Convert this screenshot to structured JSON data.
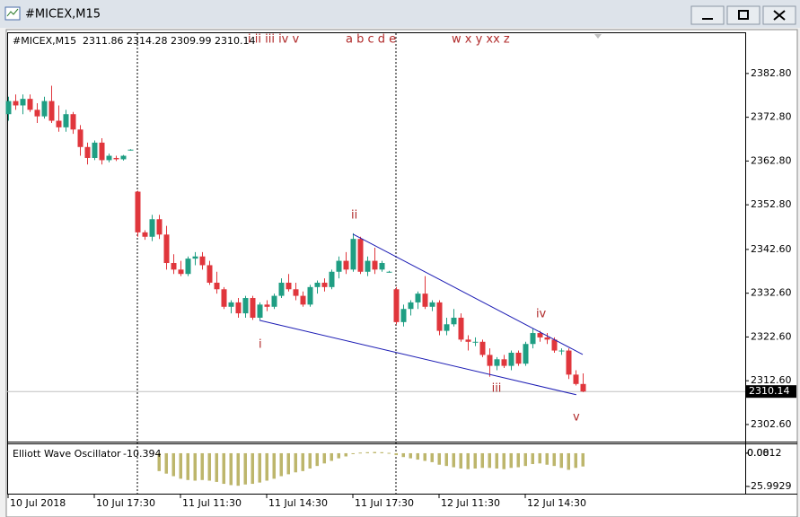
{
  "window_title": "#MICEX,M15",
  "chart_data": {
    "type": "candlestick",
    "symbol": "#MICEX,M15",
    "up_color": "#1f9e83",
    "down_color": "#e0363c",
    "ylim": [
      2298.9,
      2392.0
    ],
    "yticks": [
      {
        "value": 2382.8,
        "label": "2382.80"
      },
      {
        "value": 2372.8,
        "label": "2372.80"
      },
      {
        "value": 2362.8,
        "label": "2362.80"
      },
      {
        "value": 2352.8,
        "label": "2352.80"
      },
      {
        "value": 2342.6,
        "label": "2342.60"
      },
      {
        "value": 2332.6,
        "label": "2332.60"
      },
      {
        "value": 2322.6,
        "label": "2322.60"
      },
      {
        "value": 2312.6,
        "label": "2312.60"
      },
      {
        "value": 2302.6,
        "label": "2302.60"
      }
    ],
    "categories": [
      "10 Jul 2018",
      null,
      null,
      null,
      null,
      null,
      null,
      null,
      null,
      null,
      null,
      null,
      "10 Jul 17:30",
      null,
      null,
      null,
      null,
      null,
      null,
      null,
      null,
      null,
      null,
      null,
      "11 Jul 11:30",
      null,
      null,
      null,
      null,
      null,
      null,
      null,
      null,
      null,
      null,
      null,
      "11 Jul 14:30",
      null,
      null,
      null,
      null,
      null,
      null,
      null,
      null,
      null,
      null,
      null,
      "11 Jul 17:30",
      null,
      null,
      null,
      null,
      null,
      null,
      null,
      null,
      null,
      null,
      null,
      "12 Jul 11:30",
      null,
      null,
      null,
      null,
      null,
      null,
      null,
      null,
      null,
      null,
      null,
      "12 Jul 14:30",
      null,
      null,
      null,
      null,
      null,
      null,
      null,
      null
    ],
    "separators": [
      18,
      54
    ],
    "ohlc": [
      [
        2373.5,
        2377.5,
        2372,
        2376.5
      ],
      [
        2376.5,
        2378,
        2374.5,
        2375.5
      ],
      [
        2375.5,
        2378,
        2373.5,
        2377
      ],
      [
        2377,
        2378,
        2374,
        2374.5
      ],
      [
        2374.5,
        2376,
        2371.5,
        2373
      ],
      [
        2373,
        2377.5,
        2372.5,
        2376.5
      ],
      [
        2376.5,
        2380,
        2371.5,
        2372
      ],
      [
        2372,
        2375.5,
        2369.5,
        2370.5
      ],
      [
        2370.5,
        2374.5,
        2369.5,
        2373.5
      ],
      [
        2373.5,
        2374,
        2369,
        2370
      ],
      [
        2370,
        2371,
        2364,
        2366
      ],
      [
        2366,
        2367,
        2362,
        2363.5
      ],
      [
        2363.5,
        2367.5,
        2363,
        2367
      ],
      [
        2367,
        2368,
        2362,
        2363
      ],
      [
        2363,
        2364.5,
        2362.5,
        2364
      ],
      [
        2363.5,
        2364,
        2362.8,
        2363.2
      ],
      [
        2363.2,
        2364.2,
        2362.9,
        2364
      ],
      [
        2365.3,
        2365.5,
        2365.2,
        2365.4
      ],
      [
        2355.8,
        2356,
        2345.5,
        2346.5
      ],
      [
        2346.5,
        2347,
        2344.8,
        2345.5
      ],
      [
        2345.5,
        2350.5,
        2344.5,
        2349.5
      ],
      [
        2349.5,
        2350.5,
        2345,
        2346
      ],
      [
        2346,
        2348,
        2338,
        2339.5
      ],
      [
        2339.5,
        2341.5,
        2337,
        2338
      ],
      [
        2338,
        2340,
        2336.5,
        2337
      ],
      [
        2337,
        2341,
        2336.5,
        2340.5
      ],
      [
        2340.5,
        2342,
        2339,
        2341
      ],
      [
        2341,
        2342,
        2338,
        2339
      ],
      [
        2339,
        2340,
        2334.5,
        2335
      ],
      [
        2335,
        2337.5,
        2332.5,
        2333.5
      ],
      [
        2333.5,
        2334,
        2329,
        2329.5
      ],
      [
        2329.5,
        2331,
        2328,
        2330.5
      ],
      [
        2330.5,
        2331.5,
        2327,
        2328
      ],
      [
        2328,
        2332,
        2327,
        2331.5
      ],
      [
        2331.5,
        2332,
        2326.5,
        2327
      ],
      [
        2327,
        2330.5,
        2326.5,
        2330
      ],
      [
        2330,
        2331,
        2328.5,
        2329.5
      ],
      [
        2329.5,
        2332.5,
        2329,
        2332
      ],
      [
        2332,
        2336,
        2331.5,
        2335
      ],
      [
        2335,
        2337,
        2333,
        2333.5
      ],
      [
        2333.5,
        2335,
        2331,
        2332
      ],
      [
        2332,
        2333,
        2329.5,
        2330
      ],
      [
        2330,
        2334.5,
        2329.5,
        2334
      ],
      [
        2334,
        2335.5,
        2332.5,
        2335
      ],
      [
        2335,
        2336,
        2333,
        2334
      ],
      [
        2334,
        2338,
        2333.5,
        2337.5
      ],
      [
        2337.5,
        2341,
        2336,
        2340
      ],
      [
        2340,
        2342,
        2337,
        2338
      ],
      [
        2338,
        2346.3,
        2337.5,
        2345
      ],
      [
        2345,
        2345.5,
        2337,
        2337.5
      ],
      [
        2337.5,
        2341,
        2336.5,
        2340
      ],
      [
        2340,
        2343,
        2337,
        2338
      ],
      [
        2338,
        2340,
        2337.5,
        2339.5
      ],
      [
        2337.5,
        2337.7,
        2337.3,
        2337.5
      ],
      [
        2333.5,
        2334,
        2325.5,
        2326
      ],
      [
        2326,
        2330,
        2325,
        2329
      ],
      [
        2329,
        2331,
        2327.5,
        2330.5
      ],
      [
        2330.5,
        2333,
        2329,
        2332.5
      ],
      [
        2332.5,
        2336.5,
        2329,
        2329.5
      ],
      [
        2329.5,
        2331,
        2328.5,
        2330.5
      ],
      [
        2330.5,
        2331,
        2323,
        2324
      ],
      [
        2324,
        2327,
        2323,
        2325.5
      ],
      [
        2325.5,
        2329,
        2325,
        2327
      ],
      [
        2327,
        2328,
        2321.5,
        2322
      ],
      [
        2322,
        2323,
        2319.5,
        2321.5
      ],
      [
        2321.5,
        2322.5,
        2320.5,
        2321.5
      ],
      [
        2321.5,
        2322,
        2318,
        2318.5
      ],
      [
        2318.5,
        2320,
        2313.5,
        2316
      ],
      [
        2316,
        2318,
        2315,
        2317.5
      ],
      [
        2317.5,
        2318.5,
        2315.5,
        2316
      ],
      [
        2316,
        2319.5,
        2315,
        2319
      ],
      [
        2319,
        2319.5,
        2316,
        2316.5
      ],
      [
        2316.5,
        2321.5,
        2316,
        2321
      ],
      [
        2321,
        2324.5,
        2320,
        2323.5
      ],
      [
        2323.5,
        2324,
        2321.5,
        2322.5
      ],
      [
        2322.5,
        2323.5,
        2321,
        2322
      ],
      [
        2322,
        2322.5,
        2319,
        2319.5
      ],
      [
        2319.5,
        2320,
        2318.5,
        2319.5
      ],
      [
        2319.5,
        2320,
        2313,
        2314
      ],
      [
        2314,
        2315,
        2311.5,
        2311.86
      ],
      [
        2311.86,
        2314.28,
        2309.99,
        2310.14
      ]
    ],
    "trend_color": "#1c1cb4",
    "trendlines": [
      {
        "x": [
          48,
          80
        ],
        "y": [
          2346.1,
          2318.6
        ]
      },
      {
        "x": [
          35,
          79.1
        ],
        "y": [
          2326.4,
          2309.4
        ]
      }
    ],
    "wave_labels": [
      "i ii iii iv v",
      "a b c d e",
      "w x y xx z"
    ],
    "annotations": [
      {
        "text": "i",
        "x": 35.1,
        "y": 2320.8
      },
      {
        "text": "ii",
        "x": 48.2,
        "y": 2350.4
      },
      {
        "text": "iii",
        "x": 68,
        "y": 2310.8
      },
      {
        "text": "iv",
        "x": 74.2,
        "y": 2327.8
      },
      {
        "text": "v",
        "x": 79.1,
        "y": 2304.2
      }
    ],
    "oscillator": {
      "name": "Elliott Wave Oscillator",
      "color": "#bdb66c",
      "ylim": [
        -31.7,
        7
      ],
      "yticks": [
        0.0812,
        {
          "value": 0,
          "label": "0.00"
        },
        -25.9929
      ],
      "values": [
        null,
        null,
        null,
        null,
        null,
        null,
        null,
        null,
        null,
        null,
        null,
        null,
        null,
        null,
        null,
        null,
        null,
        null,
        null,
        null,
        null,
        -14,
        -16,
        -18,
        -20,
        -21,
        -21.5,
        -21,
        -21.5,
        -22.5,
        -24,
        -25,
        -25.5,
        -24.5,
        -24,
        -23,
        -21.5,
        -20,
        -18,
        -16.5,
        -15,
        -14,
        -12,
        -10,
        -8,
        -6,
        -4,
        -2.5,
        -0.5,
        0.5,
        0.8,
        1,
        0.8,
        0.3,
        -1.5,
        -3,
        -4,
        -5,
        -6,
        -7,
        -9,
        -10,
        -11,
        -12,
        -12.5,
        -12,
        -11.5,
        -11.5,
        -12,
        -12.5,
        -11.5,
        -11,
        -10,
        -8.5,
        -8,
        -9,
        -10,
        -11.5,
        -13,
        -11.5,
        -10.394
      ]
    }
  }
}
